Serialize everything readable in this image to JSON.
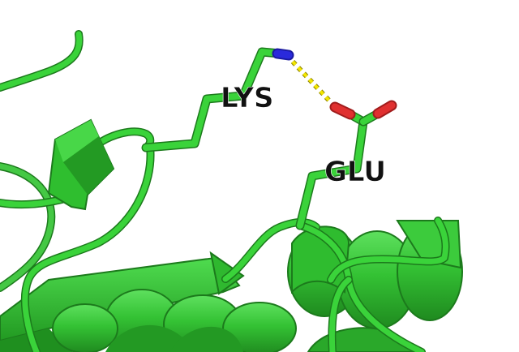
{
  "scene": {
    "residue_labels": {
      "lys": "LYS",
      "glu": "GLU"
    },
    "colors": {
      "background": "#ffffff",
      "carbon": "#3ad33a",
      "cartoon_dark": "#2aa02a",
      "cartoon_shadow": "#1c7a1c",
      "nitrogen": "#2a2adb",
      "oxygen": "#e03030",
      "hbond": "#f0e000",
      "label": "#111111"
    },
    "icons": [
      "hydrogen-bond-dashes",
      "nitrogen-atom",
      "oxygen-atom"
    ]
  }
}
